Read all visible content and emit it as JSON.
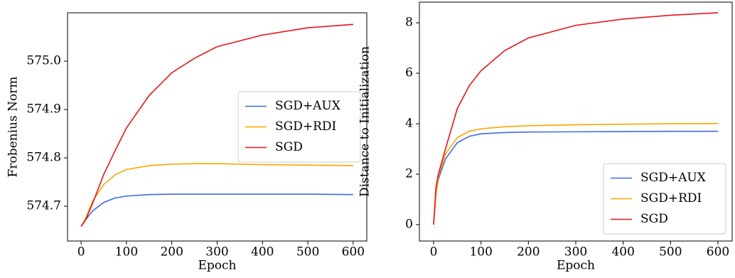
{
  "chart_data": [
    {
      "type": "line",
      "xlabel": "Epoch",
      "ylabel": "Frobenius Norm",
      "x": [
        0,
        10,
        25,
        50,
        75,
        100,
        150,
        200,
        250,
        300,
        400,
        500,
        600
      ],
      "series": [
        {
          "name": "SGD+AUX",
          "color": "#4169e1",
          "values": [
            574.658,
            574.672,
            574.69,
            574.708,
            574.717,
            574.721,
            574.724,
            574.725,
            574.725,
            574.725,
            574.725,
            574.725,
            574.724
          ]
        },
        {
          "name": "SGD+RDI",
          "color": "#ffa500",
          "values": [
            574.658,
            574.675,
            574.71,
            574.745,
            574.765,
            574.776,
            574.784,
            574.787,
            574.788,
            574.788,
            574.786,
            574.785,
            574.784
          ]
        },
        {
          "name": "SGD",
          "color": "#e8141c",
          "values": [
            574.658,
            574.672,
            574.705,
            574.766,
            574.815,
            574.862,
            574.929,
            574.976,
            575.006,
            575.03,
            575.054,
            575.069,
            575.076
          ]
        }
      ],
      "xlim": [
        -30,
        630
      ],
      "xticks": [
        0,
        100,
        200,
        300,
        400,
        500,
        600
      ],
      "ylim": [
        574.628,
        575.1
      ],
      "yticks": [
        574.7,
        574.8,
        574.9,
        {
          "value": 575,
          "label": "575.0"
        }
      ],
      "legend": "center right"
    },
    {
      "type": "line",
      "xlabel": "Epoch",
      "ylabel": "Distance to Initialization",
      "x": [
        0,
        5,
        10,
        25,
        50,
        75,
        100,
        150,
        200,
        300,
        400,
        500,
        600
      ],
      "series": [
        {
          "name": "SGD+AUX",
          "color": "#4169e1",
          "values": [
            0,
            1.2,
            1.8,
            2.6,
            3.25,
            3.5,
            3.6,
            3.65,
            3.67,
            3.68,
            3.69,
            3.7,
            3.7
          ]
        },
        {
          "name": "SGD+RDI",
          "color": "#ffa500",
          "values": [
            0,
            1.2,
            1.9,
            2.8,
            3.45,
            3.7,
            3.8,
            3.88,
            3.92,
            3.96,
            3.98,
            4.0,
            4.01
          ]
        },
        {
          "name": "SGD",
          "color": "#e8141c",
          "values": [
            0,
            1.5,
            2.0,
            3.0,
            4.6,
            5.5,
            6.1,
            6.9,
            7.4,
            7.9,
            8.15,
            8.3,
            8.4
          ]
        }
      ],
      "xlim": [
        -30,
        630
      ],
      "xticks": [
        0,
        100,
        200,
        300,
        400,
        500,
        600
      ],
      "ylim": [
        -0.65,
        8.82
      ],
      "yticks": [
        0,
        2,
        4,
        6,
        8
      ],
      "legend": "lower right"
    }
  ]
}
